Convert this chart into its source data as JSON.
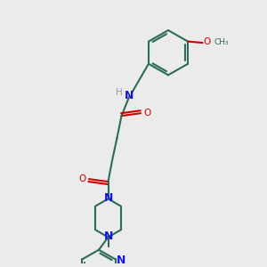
{
  "bg_color": "#ebebeb",
  "bond_color": "#2d6b5a",
  "n_color": "#1515dd",
  "o_color": "#cc0000",
  "h_color": "#999999",
  "lw": 1.5,
  "figsize": [
    3.0,
    3.0
  ],
  "dpi": 100,
  "xlim": [
    0,
    10
  ],
  "ylim": [
    0,
    10
  ]
}
